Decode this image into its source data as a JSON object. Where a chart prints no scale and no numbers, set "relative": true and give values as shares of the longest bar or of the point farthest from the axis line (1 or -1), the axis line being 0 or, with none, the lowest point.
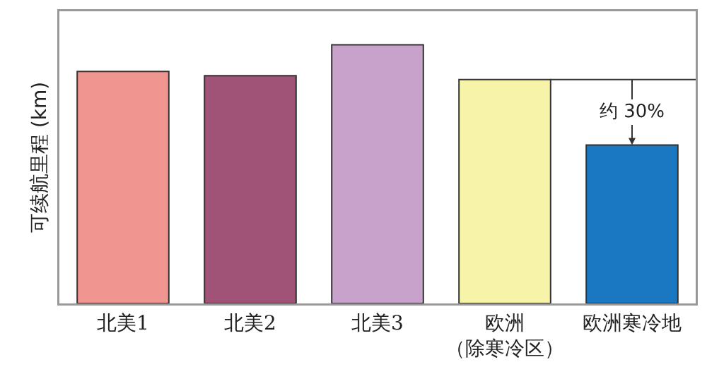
{
  "chart_data": {
    "type": "bar",
    "relative": true,
    "ylabel": "可续航里程 (km)",
    "categories": [
      "北美1",
      "北美2",
      "北美3",
      "欧洲（除寒冷区）",
      "欧洲寒冷地"
    ],
    "values": [
      0.897,
      0.881,
      1,
      0.866,
      0.613
    ],
    "colors": [
      "#f0958f",
      "#a05277",
      "#c9a2cb",
      "#f7f3a8",
      "#1a78c2"
    ],
    "ref_lines": [
      {
        "axis": "y",
        "value": 0.866,
        "color": "#333333"
      }
    ],
    "annotations": [
      {
        "text": "约 30%",
        "x": "欧洲寒冷地",
        "y": 0.613
      }
    ]
  }
}
